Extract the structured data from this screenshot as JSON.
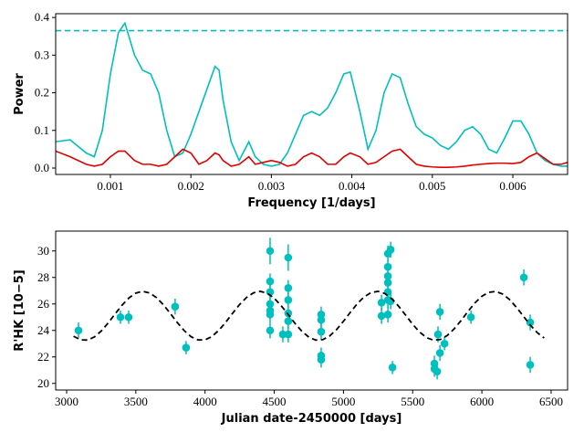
{
  "chart_data": [
    {
      "type": "line",
      "xlabel": "Frequency [1/days]",
      "ylabel": "Power",
      "xlim": [
        0.00032,
        0.00668
      ],
      "ylim": [
        -0.017,
        0.41
      ],
      "xticks": [
        0.001,
        0.002,
        0.003,
        0.004,
        0.005,
        0.006
      ],
      "yticks": [
        {
          "value": 0,
          "label": "0.0"
        },
        0.1,
        0.2,
        0.3,
        0.4
      ],
      "x": [
        0.00032,
        0.0005,
        0.0007,
        0.0008,
        0.0009,
        0.001,
        0.0011,
        0.00118,
        0.0013,
        0.0014,
        0.0015,
        0.0016,
        0.0017,
        0.0018,
        0.0019,
        0.002,
        0.0021,
        0.0022,
        0.0023,
        0.00235,
        0.0024,
        0.0025,
        0.0026,
        0.00272,
        0.0028,
        0.0029,
        0.003,
        0.0031,
        0.0032,
        0.0033,
        0.0034,
        0.0035,
        0.0036,
        0.0037,
        0.0038,
        0.0039,
        0.00398,
        0.0041,
        0.0042,
        0.0043,
        0.0044,
        0.0045,
        0.0046,
        0.0047,
        0.0048,
        0.0049,
        0.005,
        0.0051,
        0.0052,
        0.0053,
        0.0054,
        0.0055,
        0.0056,
        0.0057,
        0.0058,
        0.0059,
        0.006,
        0.0061,
        0.0062,
        0.0063,
        0.0064,
        0.0065,
        0.0066,
        0.00668
      ],
      "series": [
        {
          "color": "#00bfbf",
          "kind": "line",
          "values": [
            0.07,
            0.075,
            0.04,
            0.03,
            0.1,
            0.25,
            0.36,
            0.385,
            0.3,
            0.26,
            0.25,
            0.2,
            0.1,
            0.03,
            0.04,
            0.09,
            0.15,
            0.21,
            0.27,
            0.26,
            0.18,
            0.07,
            0.02,
            0.07,
            0.03,
            0.01,
            0.005,
            0.01,
            0.04,
            0.09,
            0.14,
            0.15,
            0.14,
            0.16,
            0.2,
            0.25,
            0.255,
            0.15,
            0.05,
            0.1,
            0.2,
            0.25,
            0.24,
            0.17,
            0.11,
            0.09,
            0.08,
            0.06,
            0.05,
            0.07,
            0.1,
            0.11,
            0.09,
            0.05,
            0.04,
            0.08,
            0.125,
            0.125,
            0.09,
            0.04,
            0.02,
            0.01,
            0.005,
            0.005
          ]
        },
        {
          "color": "#e00000",
          "kind": "line",
          "values": [
            0.045,
            0.03,
            0.01,
            0.005,
            0.01,
            0.03,
            0.045,
            0.045,
            0.02,
            0.01,
            0.01,
            0.005,
            0.01,
            0.03,
            0.05,
            0.04,
            0.01,
            0.02,
            0.04,
            0.035,
            0.02,
            0.005,
            0.01,
            0.03,
            0.01,
            0.015,
            0.02,
            0.015,
            0.005,
            0.01,
            0.03,
            0.04,
            0.03,
            0.01,
            0.01,
            0.03,
            0.04,
            0.03,
            0.01,
            0.015,
            0.03,
            0.045,
            0.05,
            0.03,
            0.01,
            0.005,
            0.003,
            0.002,
            0.002,
            0.003,
            0.005,
            0.008,
            0.01,
            0.012,
            0.013,
            0.013,
            0.012,
            0.015,
            0.03,
            0.04,
            0.025,
            0.01,
            0.01,
            0.015
          ]
        }
      ],
      "hline": {
        "value": 0.365,
        "color": "#00bfbf",
        "dashed": true
      }
    },
    {
      "type": "scatter",
      "xlabel": "Julian date-2450000 [days]",
      "ylabel": "R'HK [10−5]",
      "xlim": [
        2921,
        6619
      ],
      "ylim": [
        19.5,
        31.5
      ],
      "xticks": [
        3000,
        3500,
        4000,
        4500,
        5000,
        5500,
        6000,
        6500
      ],
      "yticks": [
        20,
        22,
        24,
        26,
        28,
        30
      ],
      "series": [
        {
          "color": "#00bfbf",
          "kind": "errorbar",
          "x": [
            3086,
            3389,
            3448,
            3784,
            3863,
            4470,
            4470,
            4470,
            4470,
            4470,
            4470,
            4470,
            4562,
            4601,
            4601,
            4601,
            4601,
            4601,
            4601,
            4839,
            4839,
            4839,
            4839,
            4839,
            5275,
            5275,
            5321,
            5321,
            5321,
            5321,
            5321,
            5321,
            5321,
            5341,
            5341,
            5354,
            5657,
            5657,
            5677,
            5683,
            5697,
            5697,
            5730,
            5921,
            6303,
            6349,
            6349
          ],
          "values": [
            24.0,
            25.0,
            25.0,
            25.8,
            22.7,
            30.0,
            27.7,
            26.9,
            26.0,
            25.5,
            25.2,
            24.0,
            23.7,
            29.5,
            27.2,
            26.3,
            25.3,
            24.7,
            23.7,
            25.2,
            24.8,
            23.9,
            22.1,
            21.8,
            25.1,
            26.1,
            29.8,
            28.8,
            28.1,
            27.6,
            26.9,
            26.3,
            25.2,
            30.1,
            26.2,
            21.2,
            21.5,
            21.1,
            20.9,
            23.7,
            25.4,
            22.3,
            23.0,
            25.0,
            28.0,
            24.6,
            21.4
          ],
          "errors": [
            0.6,
            0.5,
            0.5,
            0.6,
            0.5,
            1.0,
            0.6,
            0.6,
            0.6,
            0.6,
            0.6,
            0.6,
            0.6,
            1.0,
            0.6,
            0.6,
            0.6,
            0.6,
            0.6,
            0.6,
            0.6,
            0.6,
            0.6,
            0.6,
            0.6,
            0.6,
            0.6,
            0.6,
            0.6,
            0.6,
            0.6,
            0.6,
            0.6,
            0.6,
            0.6,
            0.5,
            0.6,
            0.6,
            0.6,
            0.6,
            0.6,
            0.6,
            0.5,
            0.5,
            0.6,
            0.6,
            0.6
          ]
        },
        {
          "color": "#000000",
          "kind": "line",
          "dashed": true,
          "x": [
            3050,
            3100,
            3150,
            3200,
            3250,
            3300,
            3350,
            3400,
            3450,
            3500,
            3550,
            3600,
            3650,
            3700,
            3750,
            3800,
            3850,
            3900,
            3950,
            4000,
            4050,
            4100,
            4150,
            4200,
            4250,
            4300,
            4350,
            4400,
            4450,
            4500,
            4550,
            4600,
            4650,
            4700,
            4750,
            4800,
            4850,
            4900,
            4950,
            5000,
            5050,
            5100,
            5150,
            5200,
            5250,
            5300,
            5350,
            5400,
            5450,
            5500,
            5550,
            5600,
            5650,
            5700,
            5750,
            5800,
            5850,
            5900,
            5950,
            6000,
            6050,
            6100,
            6150,
            6200,
            6250,
            6300,
            6350,
            6400,
            6450
          ],
          "values": [
            23.56,
            23.29,
            23.27,
            23.5,
            23.95,
            24.56,
            25.24,
            25.9,
            26.45,
            26.82,
            26.95,
            26.83,
            26.47,
            25.93,
            25.27,
            24.59,
            23.98,
            23.52,
            23.28,
            23.29,
            23.54,
            24.01,
            24.62,
            25.31,
            25.96,
            26.49,
            26.84,
            26.95,
            26.81,
            26.43,
            25.87,
            25.21,
            24.53,
            23.93,
            23.49,
            23.27,
            23.3,
            23.58,
            24.06,
            24.69,
            25.37,
            26.02,
            26.54,
            26.86,
            26.95,
            26.78,
            26.38,
            25.81,
            25.14,
            24.46,
            23.88,
            23.46,
            23.26,
            23.32,
            23.62,
            24.12,
            24.75,
            25.44,
            26.08,
            26.58,
            26.88,
            26.94,
            26.75,
            26.33,
            25.74,
            25.07,
            24.4,
            23.83,
            23.43
          ]
        }
      ]
    }
  ]
}
